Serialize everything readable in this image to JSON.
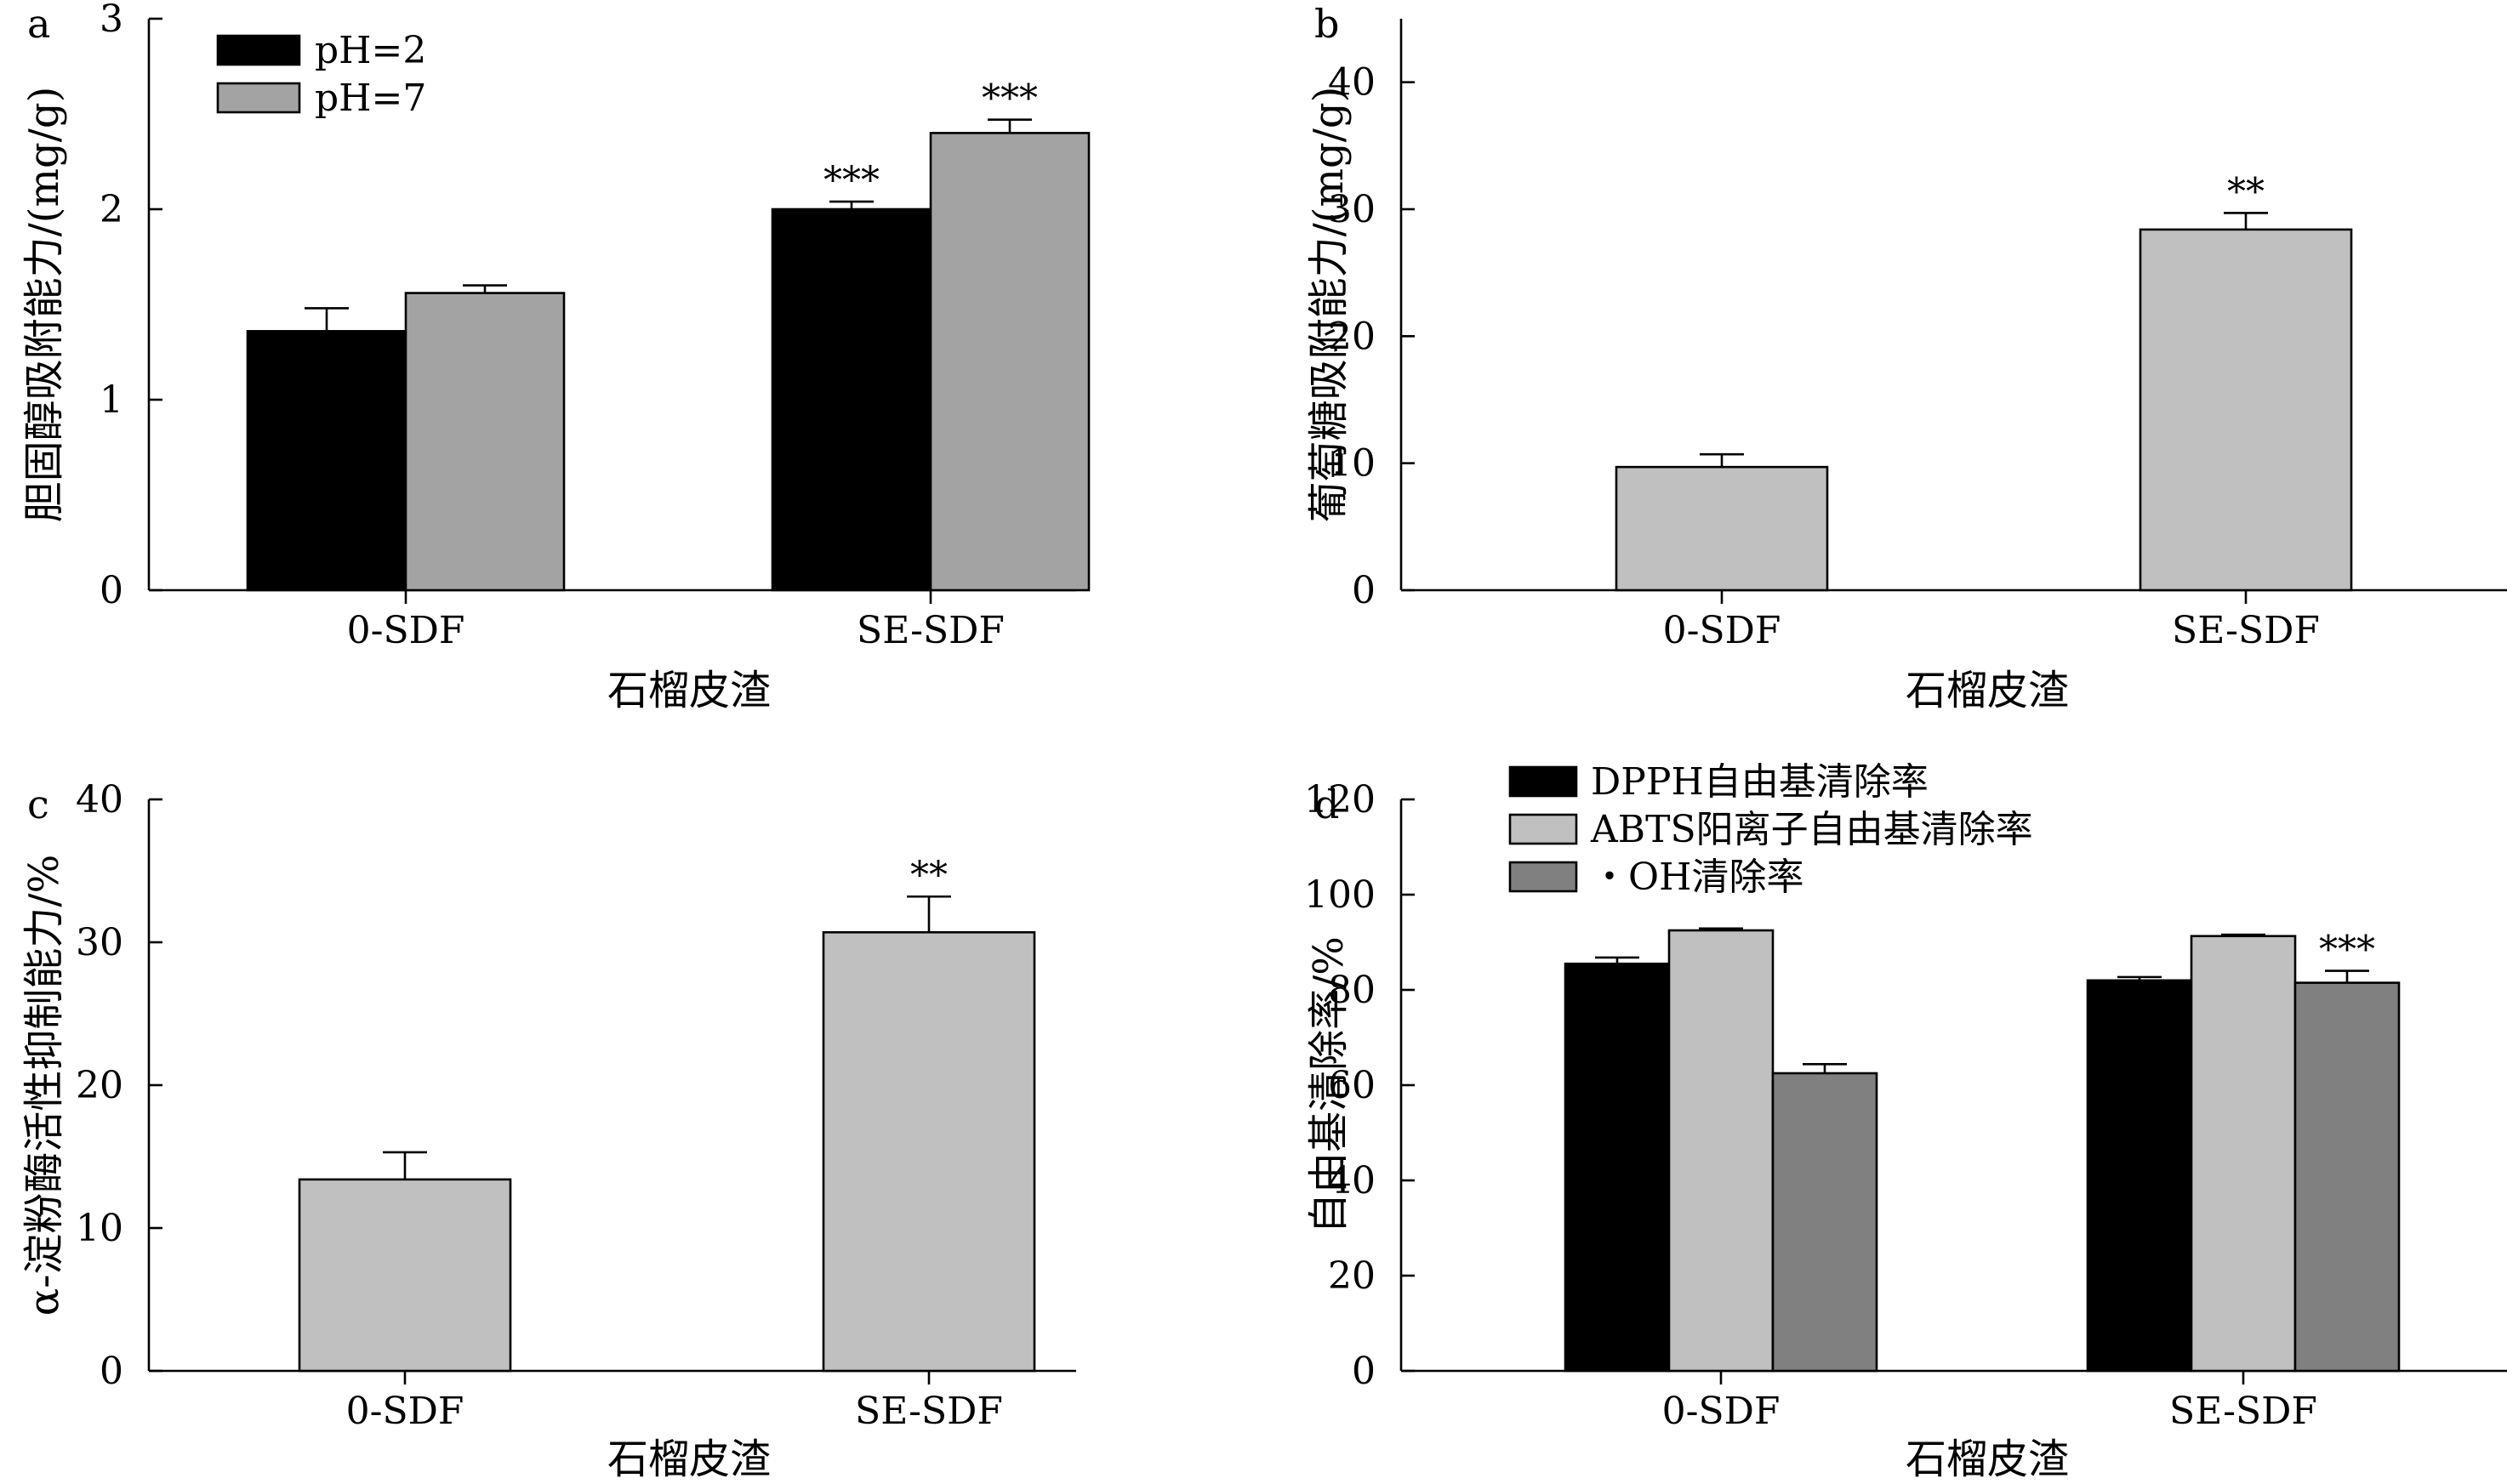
{
  "chart_data": [
    {
      "panel": "a",
      "type": "bar",
      "categories": [
        "0-SDF",
        "SE-SDF"
      ],
      "series": [
        {
          "name": "pH=2",
          "values": [
            1.36,
            2.0
          ],
          "errors": [
            0.12,
            0.04
          ],
          "significance": [
            "",
            "***"
          ],
          "color": "#000000"
        },
        {
          "name": "pH=7",
          "values": [
            1.56,
            2.4
          ],
          "errors": [
            0.04,
            0.07
          ],
          "significance": [
            "",
            "***"
          ],
          "color": "#a3a3a3"
        }
      ],
      "xlabel": "石榴皮渣",
      "ylabel": "胆固醇吸附能力/(mg/g)",
      "ylim": [
        0,
        3
      ],
      "yticks": [
        0,
        1,
        2,
        3
      ],
      "legend": "top-left",
      "grid": false
    },
    {
      "panel": "b",
      "type": "bar",
      "categories": [
        "0-SDF",
        "SE-SDF"
      ],
      "series": [
        {
          "values": [
            9.7,
            28.4
          ],
          "errors": [
            1.0,
            1.3
          ],
          "significance": [
            "",
            "**"
          ],
          "color": "#c0c0c0"
        }
      ],
      "xlabel": "石榴皮渣",
      "ylabel": "葡萄糖吸附能力/(mg/g)",
      "ylim": [
        0,
        45
      ],
      "yticks": [
        0,
        10,
        20,
        30,
        40
      ],
      "grid": false
    },
    {
      "panel": "c",
      "type": "bar",
      "categories": [
        "0-SDF",
        "SE-SDF"
      ],
      "series": [
        {
          "values": [
            13.4,
            30.7
          ],
          "errors": [
            1.9,
            2.5
          ],
          "significance": [
            "",
            "**"
          ],
          "color": "#c0c0c0"
        }
      ],
      "xlabel": "石榴皮渣",
      "ylabel": "α-淀粉酶活性抑制能力/%",
      "ylim": [
        0,
        40
      ],
      "yticks": [
        0,
        10,
        20,
        30,
        40
      ],
      "grid": false
    },
    {
      "panel": "d",
      "type": "bar",
      "categories": [
        "0-SDF",
        "SE-SDF"
      ],
      "series": [
        {
          "name": "DPPH自由基清除率",
          "values": [
            85.5,
            82.0
          ],
          "errors": [
            1.3,
            0.7
          ],
          "significance": [
            "",
            ""
          ],
          "color": "#000000"
        },
        {
          "name": "ABTS阳离子自由基清除率",
          "values": [
            92.5,
            91.3
          ],
          "errors": [
            0.4,
            0.3
          ],
          "significance": [
            "",
            ""
          ],
          "color": "#c0c0c0"
        },
        {
          "name": "・OH清除率",
          "values": [
            62.5,
            81.5
          ],
          "errors": [
            1.9,
            2.5
          ],
          "significance": [
            "",
            "***"
          ],
          "color": "#808080"
        }
      ],
      "xlabel": "石榴皮渣",
      "ylabel": "自由基清除率/%",
      "ylim": [
        0,
        120
      ],
      "yticks": [
        0,
        20,
        40,
        60,
        80,
        100,
        120
      ],
      "legend": "top",
      "grid": false
    }
  ]
}
